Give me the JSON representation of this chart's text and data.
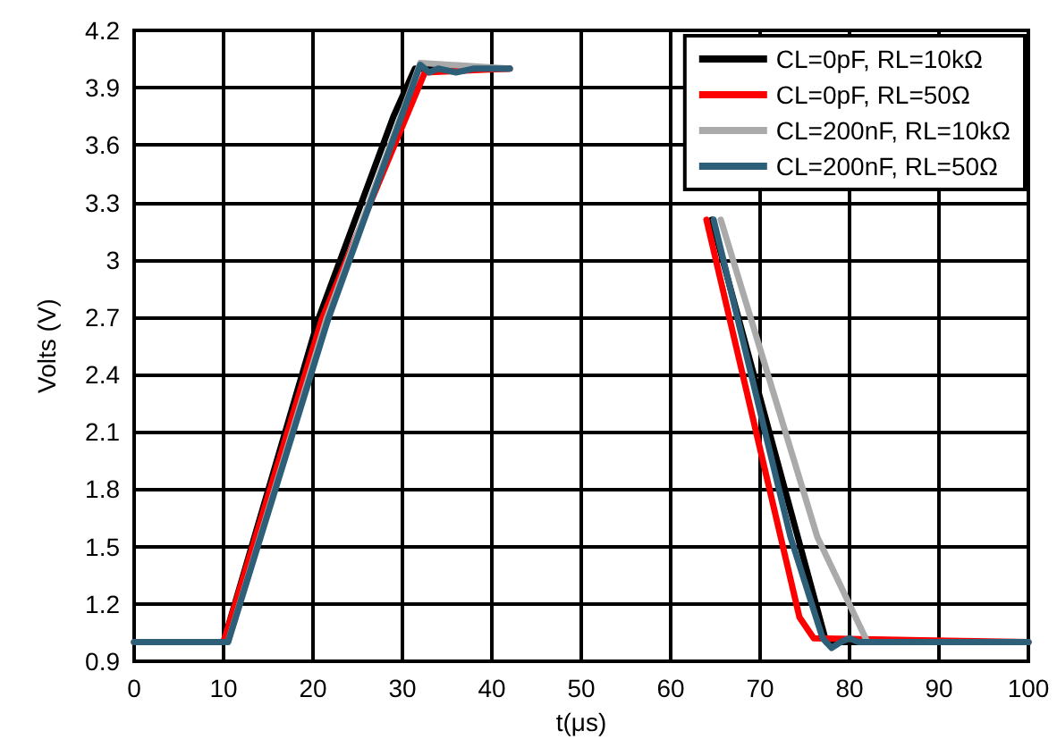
{
  "chart_data": {
    "type": "line",
    "xlabel": "t(μs)",
    "ylabel": "Volts (V)",
    "xlim": [
      0,
      100
    ],
    "xticks": [
      0,
      10,
      20,
      30,
      40,
      50,
      60,
      70,
      80,
      90,
      100
    ],
    "ylim": [
      0.9,
      4.2
    ],
    "yticks": [
      0.9,
      1.2,
      1.5,
      1.8,
      2.1,
      2.4,
      2.7,
      3,
      3.3,
      3.6,
      3.9,
      4.2
    ],
    "grid": true,
    "legend": "top right",
    "marker": "none",
    "line_style": "solid",
    "series": [
      {
        "name": "CL=0pF, RL=10kΩ",
        "color": "#000000",
        "x": [
          0,
          10,
          20.6,
          29,
          31.4,
          40,
          42,
          50,
          64.6,
          77.4,
          100
        ],
        "values": [
          1,
          1,
          2.69,
          3.75,
          4.0,
          4.0,
          4.0,
          null,
          3.21,
          1.0,
          1.0
        ]
      },
      {
        "name": "CL=0pF, RL=50Ω",
        "color": "#ff0000",
        "x": [
          0,
          10,
          21,
          32.5,
          42,
          50,
          64,
          74.4,
          76,
          100
        ],
        "values": [
          1,
          1,
          2.69,
          3.98,
          4.0,
          null,
          3.21,
          1.13,
          1.02,
          1.0
        ]
      },
      {
        "name": "CL=200nF, RL=10kΩ",
        "color": "#aaaaaa",
        "x": [
          0,
          10.5,
          21.5,
          32,
          42,
          50,
          65.6,
          76.4,
          82,
          100
        ],
        "values": [
          1,
          1,
          2.69,
          4.03,
          4.0,
          null,
          3.21,
          1.55,
          1.0,
          1.0
        ]
      },
      {
        "name": "CL=200nF, RL=50Ω",
        "color": "#2e5f78",
        "x": [
          0,
          10.5,
          21.7,
          32,
          33,
          34,
          36,
          38,
          42,
          50,
          64.8,
          73.4,
          77,
          78,
          79,
          80,
          81,
          100
        ],
        "values": [
          1,
          1,
          2.69,
          4.02,
          3.98,
          4.0,
          3.98,
          4.0,
          4.0,
          null,
          3.21,
          1.55,
          1.02,
          0.97,
          1.0,
          1.02,
          1.0,
          1.0
        ]
      }
    ]
  }
}
